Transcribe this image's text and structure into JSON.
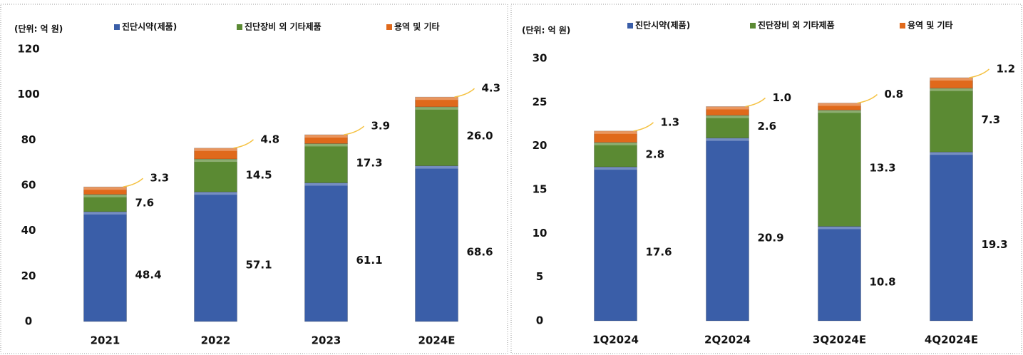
{
  "chart_data": [
    {
      "type": "stacked_bar",
      "subtitle": "(단위: 억 원)",
      "categories": [
        "2021",
        "2022",
        "2023",
        "2024E"
      ],
      "series": [
        {
          "name": "진단시약(제품)",
          "color": "#3a5ea8",
          "values": [
            48.4,
            57.1,
            61.1,
            68.6
          ]
        },
        {
          "name": "진단장비 외 기타제품",
          "color": "#5b8a33",
          "values": [
            7.6,
            14.5,
            17.3,
            26.0
          ],
          "value_labels": [
            "7.6",
            "14.5",
            "17.3",
            "26.0"
          ]
        },
        {
          "name": "용역 및 기타",
          "color": "#e0691b",
          "values": [
            3.3,
            4.8,
            3.9,
            4.3
          ]
        }
      ],
      "ylim": [
        0,
        120
      ],
      "yticks": [
        0,
        20,
        40,
        60,
        80,
        100,
        120
      ]
    },
    {
      "type": "stacked_bar",
      "subtitle": "(단위: 억 원)",
      "categories": [
        "1Q2024",
        "2Q2024",
        "3Q2024E",
        "4Q2024E"
      ],
      "series": [
        {
          "name": "진단시약(제품)",
          "color": "#3a5ea8",
          "values": [
            17.6,
            20.9,
            10.8,
            19.3
          ]
        },
        {
          "name": "진단장비 외 기타제품",
          "color": "#5b8a33",
          "values": [
            2.8,
            2.6,
            13.3,
            7.3
          ]
        },
        {
          "name": "용역 및 기타",
          "color": "#e0691b",
          "values": [
            1.3,
            1.0,
            0.8,
            1.2
          ],
          "value_labels": [
            "1.3",
            "1.0",
            "0.8",
            "1.2"
          ]
        }
      ],
      "ylim": [
        0,
        30
      ],
      "yticks": [
        0,
        5,
        10,
        15,
        20,
        25,
        30
      ]
    }
  ]
}
